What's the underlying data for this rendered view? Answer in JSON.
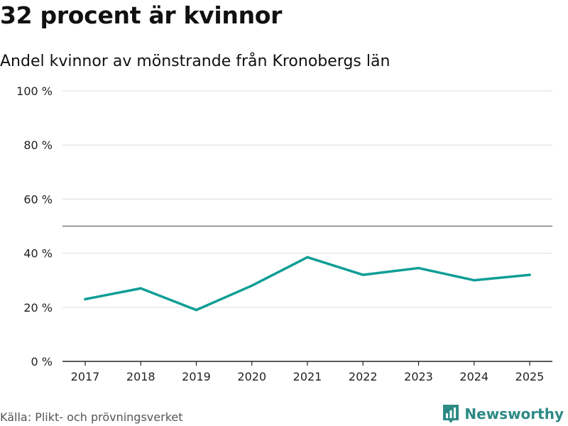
{
  "header": {
    "title": "32 procent är kvinnor",
    "subtitle": "Andel kvinnor av mönstrande från Kronobergs län"
  },
  "footer": {
    "source": "Källa: Plikt- och prövningsverket",
    "brand": "Newsworthy",
    "brand_icon": "bar-chart-logo-icon",
    "brand_color": "#2e8a85"
  },
  "chart_data": {
    "type": "line",
    "title": "32 procent är kvinnor",
    "subtitle": "Andel kvinnor av mönstrande från Kronobergs län",
    "xlabel": "",
    "ylabel": "",
    "x": [
      "2017",
      "2018",
      "2019",
      "2020",
      "2021",
      "2022",
      "2023",
      "2024",
      "2025"
    ],
    "series": [
      {
        "name": "Andel kvinnor",
        "color": "#109e96",
        "values": [
          23,
          27,
          19,
          28,
          38.5,
          32,
          34.5,
          30,
          32
        ]
      }
    ],
    "ylim": [
      0,
      100
    ],
    "yticks": [
      0,
      20,
      40,
      60,
      80,
      100
    ],
    "ytick_labels": [
      "0 %",
      "20 %",
      "40 %",
      "60 %",
      "80 %",
      "100 %"
    ],
    "reference_line": 50,
    "grid": true,
    "legend": "none"
  }
}
